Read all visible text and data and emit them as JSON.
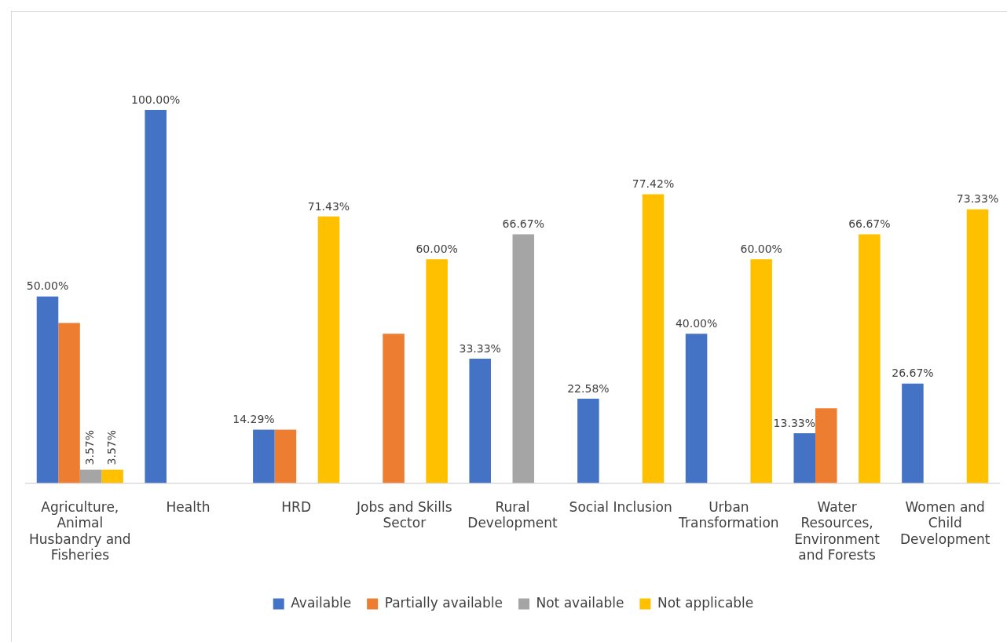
{
  "chart_data": {
    "type": "bar",
    "categories": [
      "Agriculture, Animal Husbandry and Fisheries",
      "Health",
      "HRD",
      "Jobs and Skills Sector",
      "Rural Development",
      "Social Inclusion",
      "Urban Transformation",
      "Water Resources, Environment and Forests",
      "Women and Child Development"
    ],
    "series": [
      {
        "name": "Available",
        "color": "#4472c4",
        "values": [
          50.0,
          100.0,
          14.29,
          null,
          33.33,
          22.58,
          40.0,
          13.33,
          26.67
        ],
        "value_labels": [
          "50.00%",
          "100.00%",
          "14.29%",
          null,
          "33.33%",
          "22.58%",
          "40.00%",
          "13.33%",
          "26.67%"
        ]
      },
      {
        "name": "Partially available",
        "color": "#ed7d31",
        "values": [
          42.9,
          null,
          14.3,
          40,
          null,
          null,
          null,
          20,
          null
        ],
        "value_labels": [
          null,
          null,
          null,
          null,
          null,
          null,
          null,
          null,
          null
        ]
      },
      {
        "name": "Not available",
        "color": "#a5a5a5",
        "values": [
          3.57,
          null,
          null,
          null,
          66.67,
          null,
          null,
          null,
          null
        ],
        "value_labels": [
          "3.57%",
          null,
          null,
          null,
          "66.67%",
          null,
          null,
          null,
          null
        ]
      },
      {
        "name": "Not applicable",
        "color": "#ffc000",
        "values": [
          3.57,
          null,
          71.43,
          60.0,
          null,
          77.42,
          60.0,
          66.67,
          73.33
        ],
        "value_labels": [
          "3.57%",
          null,
          "71.43%",
          "60.00%",
          null,
          "77.42%",
          "60.00%",
          "66.67%",
          "73.33%"
        ]
      }
    ],
    "legend": "bottom",
    "grid": false
  }
}
